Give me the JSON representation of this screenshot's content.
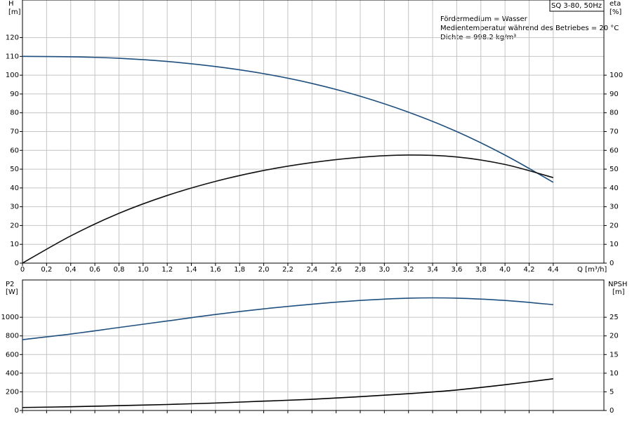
{
  "chart_data": [
    {
      "type": "line",
      "title": "SQ 3-80, 50Hz",
      "notes": [
        "Fördermedium = Wasser",
        "Medientemperatur während des Betriebes = 20 °C",
        "Dichte = 998.2 kg/m³"
      ],
      "ylabel": "H",
      "yunit": "[m]",
      "y2label": "eta",
      "y2unit": "[%]",
      "xlabel": "Q [m³/h]",
      "x": [
        0,
        0.4,
        0.8,
        1.2,
        1.6,
        2.0,
        2.4,
        2.8,
        3.2,
        3.6,
        4.0,
        4.4
      ],
      "xlim": [
        0,
        4.82
      ],
      "xticks": [
        0,
        {
          "value": 0.2,
          "label": "0,2"
        },
        {
          "value": 0.4,
          "label": "0,4"
        },
        {
          "value": 0.6,
          "label": "0,6"
        },
        {
          "value": 0.8,
          "label": "0,8"
        },
        {
          "value": 1,
          "label": "1,0"
        },
        {
          "value": 1.2,
          "label": "1,2"
        },
        {
          "value": 1.4,
          "label": "1,4"
        },
        {
          "value": 1.6,
          "label": "1,6"
        },
        {
          "value": 1.8,
          "label": "1,8"
        },
        {
          "value": 2,
          "label": "2,0"
        },
        {
          "value": 2.2,
          "label": "2,2"
        },
        {
          "value": 2.4,
          "label": "2,4"
        },
        {
          "value": 2.6,
          "label": "2,6"
        },
        {
          "value": 2.8,
          "label": "2,8"
        },
        {
          "value": 3,
          "label": "3,0"
        },
        {
          "value": 3.2,
          "label": "3,2"
        },
        {
          "value": 3.4,
          "label": "3,4"
        },
        {
          "value": 3.6,
          "label": "3,6"
        },
        {
          "value": 3.8,
          "label": "3,8"
        },
        {
          "value": 4,
          "label": "4,0"
        },
        {
          "value": 4.2,
          "label": "4,2"
        },
        {
          "value": 4.4,
          "label": "4,4"
        }
      ],
      "ylim": [
        0,
        140
      ],
      "yticks": [
        0,
        10,
        20,
        30,
        40,
        50,
        60,
        70,
        80,
        90,
        100,
        110,
        120
      ],
      "y2lim": [
        0,
        140
      ],
      "y2ticks": [
        0,
        10,
        20,
        30,
        40,
        50,
        60,
        70,
        80,
        90,
        100
      ],
      "grid": true,
      "series": [
        {
          "color": "#1f4f7f",
          "values": [
            110,
            109.8,
            109,
            107.3,
            104.6,
            100.8,
            95.6,
            88.8,
            80.3,
            70,
            57.5,
            43
          ]
        },
        {
          "color": "#111111",
          "axis": "y2",
          "values": [
            0,
            14.5,
            26.5,
            36,
            43.5,
            49.3,
            53.5,
            56.3,
            57.5,
            56.5,
            52.5,
            45.5
          ]
        }
      ]
    },
    {
      "type": "line",
      "ylabel": "P2",
      "yunit": "[W]",
      "y2label": "NPSH",
      "y2unit": "[m]",
      "x": [
        0,
        0.4,
        0.8,
        1.2,
        1.6,
        2.0,
        2.4,
        2.8,
        3.2,
        3.6,
        4.0,
        4.4
      ],
      "xlim": [
        0,
        4.82
      ],
      "ylim": [
        0,
        1400
      ],
      "yticks": [
        0,
        200,
        400,
        600,
        800,
        1000
      ],
      "y2lim": [
        0,
        35
      ],
      "y2ticks": [
        0,
        5,
        10,
        15,
        20,
        25
      ],
      "grid": true,
      "series": [
        {
          "color": "#1f4f7f",
          "values": [
            760,
            820,
            890,
            960,
            1030,
            1090,
            1140,
            1180,
            1205,
            1205,
            1180,
            1135
          ]
        },
        {
          "color": "#000000",
          "axis": "y2",
          "values": [
            0.8,
            1,
            1.3,
            1.6,
            2,
            2.5,
            3,
            3.7,
            4.5,
            5.5,
            6.9,
            8.5
          ]
        }
      ]
    }
  ]
}
